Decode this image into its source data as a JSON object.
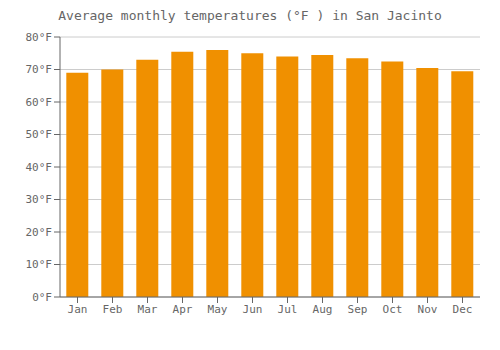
{
  "chart_data": {
    "type": "bar",
    "title": "Average monthly temperatures (°F ) in San Jacinto",
    "categories": [
      "Jan",
      "Feb",
      "Mar",
      "Apr",
      "May",
      "Jun",
      "Jul",
      "Aug",
      "Sep",
      "Oct",
      "Nov",
      "Dec"
    ],
    "values": [
      69,
      70,
      73,
      75.5,
      76,
      75,
      74,
      74.5,
      73.5,
      72.5,
      70.5,
      69.5
    ],
    "color": "#F09000",
    "ylim": [
      0,
      80
    ],
    "yticks": [
      {
        "value": 0,
        "label": "0°F"
      },
      {
        "value": 10,
        "label": "10°F"
      },
      {
        "value": 20,
        "label": "20°F"
      },
      {
        "value": 30,
        "label": "30°F"
      },
      {
        "value": 40,
        "label": "40°F"
      },
      {
        "value": 50,
        "label": "50°F"
      },
      {
        "value": 60,
        "label": "60°F"
      },
      {
        "value": 70,
        "label": "70°F"
      },
      {
        "value": 80,
        "label": "80°F"
      }
    ],
    "grid": true
  }
}
